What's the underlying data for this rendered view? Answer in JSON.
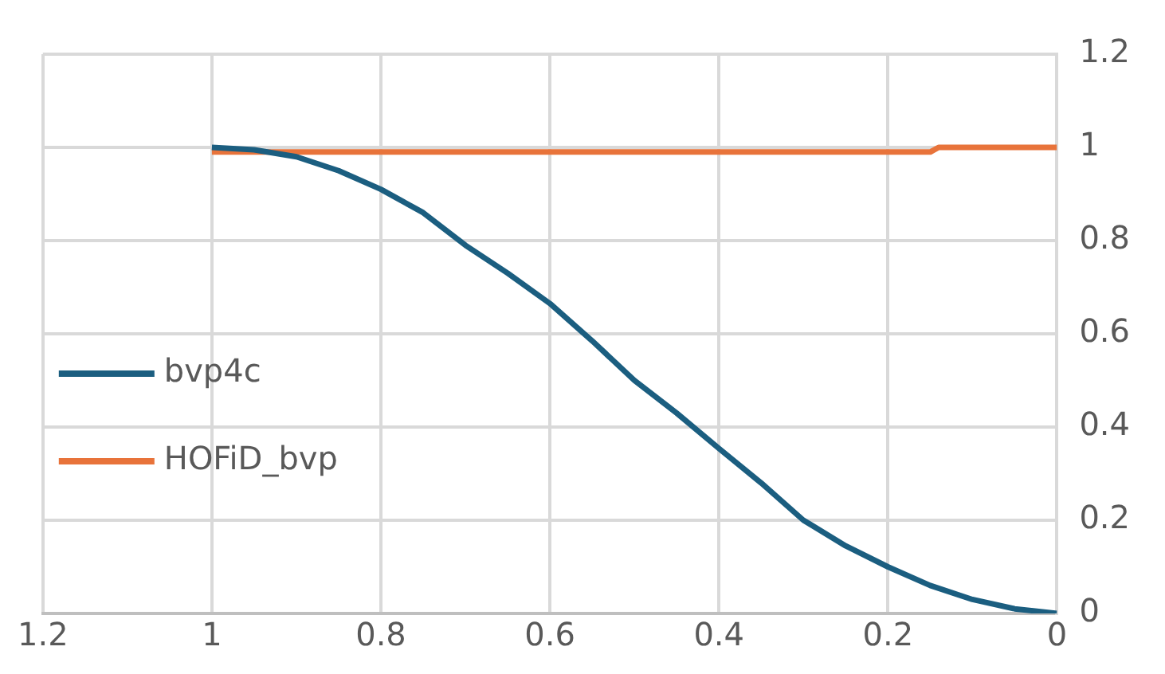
{
  "chart_data": {
    "type": "line",
    "xlim": [
      1.2,
      0
    ],
    "xticks": [
      1.2,
      1,
      0.8,
      0.6,
      0.4,
      0.2,
      0
    ],
    "ylim": [
      0,
      1.2
    ],
    "yticks": [
      0,
      0.2,
      0.4,
      0.6,
      0.8,
      1,
      1.2
    ],
    "grid": true,
    "legend": "left",
    "marker": "none",
    "line_style": "solid",
    "series": [
      {
        "name": "bvp4c",
        "color": "#1b5e80",
        "x": [
          1,
          0.95,
          0.9,
          0.85,
          0.8,
          0.75,
          0.7,
          0.65,
          0.6,
          0.55,
          0.5,
          0.45,
          0.4,
          0.35,
          0.3,
          0.25,
          0.2,
          0.15,
          0.1,
          0.05,
          0
        ],
        "values": [
          1,
          0.995,
          0.98,
          0.95,
          0.91,
          0.86,
          0.79,
          0.73,
          0.665,
          0.585,
          0.5,
          0.43,
          0.354,
          0.28,
          0.2,
          0.145,
          0.1,
          0.06,
          0.03,
          0.01,
          0
        ]
      },
      {
        "name": "HOFiD_bvp",
        "color": "#e8733a",
        "x": [
          1,
          0.15,
          0.14,
          0
        ],
        "values": [
          0.99,
          0.99,
          1,
          1
        ]
      }
    ]
  }
}
